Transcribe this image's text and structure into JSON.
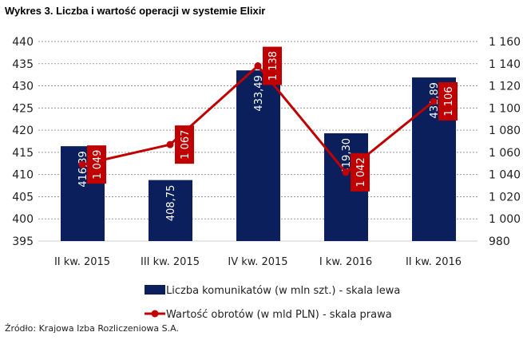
{
  "title": "Wykres 3. Liczba i wartość operacji w systemie Elixir",
  "source": "Źródło: Krajowa Izba Rozliczeniowa S.A.",
  "chart_data": {
    "type": "bar+line",
    "title": "Wykres 3. Liczba i wartość operacji w systemie Elixir",
    "categories": [
      "II kw. 2015",
      "III kw. 2015",
      "IV kw. 2015",
      "I kw. 2016",
      "II kw. 2016"
    ],
    "series": [
      {
        "name": "Liczba komunikatów (w mln szt.) - skala lewa",
        "type": "bar",
        "axis": "left",
        "color": "#0a1f5c",
        "values": [
          416.39,
          408.75,
          433.49,
          419.3,
          431.89
        ],
        "labels": [
          "416,39",
          "408,75",
          "433,49",
          "419,30",
          "431,89"
        ]
      },
      {
        "name": "Wartość obrotów (w mld PLN) - skala prawa",
        "type": "line",
        "axis": "right",
        "color": "#c00000",
        "values": [
          1049,
          1067,
          1138,
          1042,
          1106
        ],
        "labels": [
          "1 049",
          "1 067",
          "1 138",
          "1 042",
          "1 106"
        ]
      }
    ],
    "left_axis": {
      "min": 395,
      "max": 440,
      "step": 5,
      "ticks": [
        "395",
        "400",
        "405",
        "410",
        "415",
        "420",
        "425",
        "430",
        "435",
        "440"
      ]
    },
    "right_axis": {
      "min": 980,
      "max": 1160,
      "step": 20,
      "ticks": [
        "980",
        "1 000",
        "1 020",
        "1 040",
        "1 060",
        "1 080",
        "1 100",
        "1 120",
        "1 140",
        "1 160"
      ]
    },
    "grid": "horizontal dotted",
    "legend": "bottom"
  }
}
